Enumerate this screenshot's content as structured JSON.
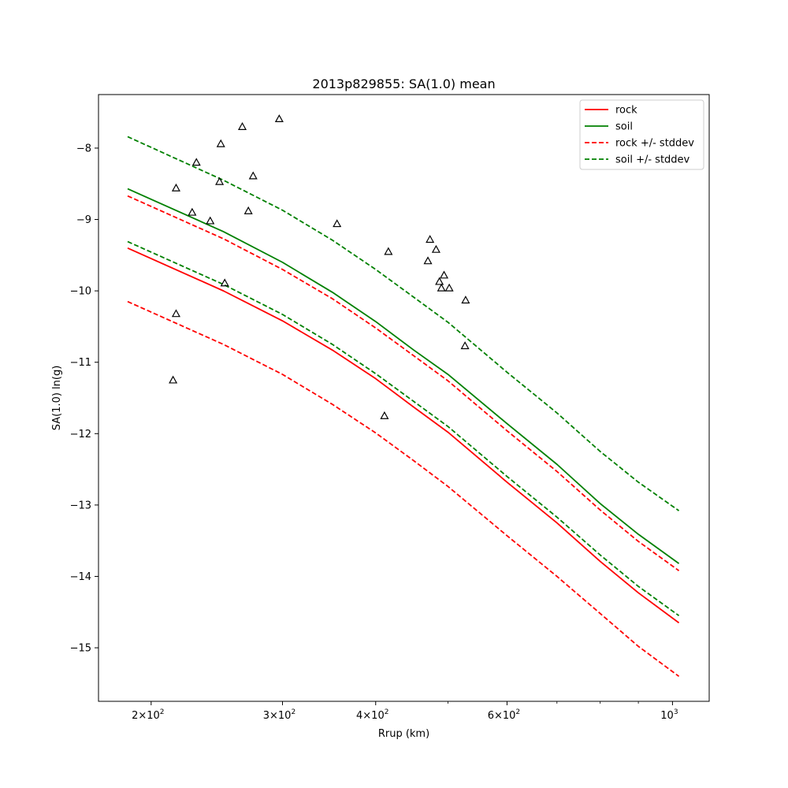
{
  "chart_data": {
    "type": "line",
    "title": "2013p829855: SA(1.0) mean",
    "xlabel": "Rrup (km)",
    "ylabel": "SA(1.0) ln(g)",
    "xscale": "log",
    "xlim": [
      170,
      1120
    ],
    "ylim": [
      -15.75,
      -7.25
    ],
    "grid": false,
    "legend_position": "top-right",
    "x_ticks": [
      {
        "value": 200,
        "base": "2",
        "exp": "2"
      },
      {
        "value": 300,
        "base": "3",
        "exp": "2"
      },
      {
        "value": 400,
        "base": "4",
        "exp": "2"
      },
      {
        "value": 600,
        "base": "6",
        "exp": "2"
      },
      {
        "value": 1000,
        "base": "10",
        "exp": "3"
      }
    ],
    "x_minor_ticks": [
      500,
      700,
      800,
      900
    ],
    "y_ticks": [
      {
        "value": -8,
        "label": "−8"
      },
      {
        "value": -9,
        "label": "−9"
      },
      {
        "value": -10,
        "label": "−10"
      },
      {
        "value": -11,
        "label": "−11"
      },
      {
        "value": -12,
        "label": "−12"
      },
      {
        "value": -13,
        "label": "−13"
      },
      {
        "value": -14,
        "label": "−14"
      },
      {
        "value": -15,
        "label": "−15"
      }
    ],
    "series": [
      {
        "name": "rock",
        "color": "#ff0000",
        "dash": "solid",
        "x": [
          186,
          250,
          300,
          350,
          400,
          450,
          500,
          600,
          700,
          800,
          900,
          1020
        ],
        "y": [
          -9.4,
          -10.0,
          -10.42,
          -10.83,
          -11.23,
          -11.63,
          -11.98,
          -12.68,
          -13.25,
          -13.79,
          -14.23,
          -14.65
        ]
      },
      {
        "name": "soil",
        "color": "#008000",
        "dash": "solid",
        "x": [
          186,
          250,
          300,
          350,
          400,
          450,
          500,
          600,
          700,
          800,
          900,
          1020
        ],
        "y": [
          -8.57,
          -9.17,
          -9.6,
          -10.02,
          -10.43,
          -10.83,
          -11.17,
          -11.86,
          -12.43,
          -12.98,
          -13.41,
          -13.82
        ]
      },
      {
        "name": "rock +/- stddev",
        "color": "#ff0000",
        "dash": "dashed",
        "x": [
          186,
          250,
          300,
          350,
          400,
          450,
          500,
          600,
          700,
          800,
          900,
          1020
        ],
        "y": [
          -8.67,
          -9.27,
          -9.7,
          -10.11,
          -10.52,
          -10.91,
          -11.26,
          -11.96,
          -12.53,
          -13.07,
          -13.51,
          -13.92
        ]
      },
      {
        "name": "",
        "color": "#ff0000",
        "dash": "dashed",
        "x": [
          186,
          250,
          300,
          350,
          400,
          450,
          500,
          600,
          700,
          800,
          900,
          1020
        ],
        "y": [
          -10.15,
          -10.75,
          -11.17,
          -11.59,
          -11.99,
          -12.38,
          -12.74,
          -13.43,
          -14.0,
          -14.52,
          -14.98,
          -15.4
        ]
      },
      {
        "name": "soil +/- stddev",
        "color": "#008000",
        "dash": "dashed",
        "x": [
          186,
          250,
          300,
          350,
          400,
          450,
          500,
          600,
          700,
          800,
          900,
          1020
        ],
        "y": [
          -7.84,
          -8.45,
          -8.87,
          -9.29,
          -9.7,
          -10.09,
          -10.44,
          -11.14,
          -11.71,
          -12.25,
          -12.68,
          -13.08
        ]
      },
      {
        "name": "",
        "color": "#008000",
        "dash": "dashed",
        "x": [
          186,
          250,
          300,
          350,
          400,
          450,
          500,
          600,
          700,
          800,
          900,
          1020
        ],
        "y": [
          -9.31,
          -9.91,
          -10.33,
          -10.75,
          -11.16,
          -11.55,
          -11.9,
          -12.6,
          -13.17,
          -13.7,
          -14.14,
          -14.55
        ]
      }
    ],
    "legend_entries": [
      {
        "label": "rock",
        "color": "#ff0000",
        "dash": "solid"
      },
      {
        "label": "soil",
        "color": "#008000",
        "dash": "solid"
      },
      {
        "label": "rock +/- stddev",
        "color": "#ff0000",
        "dash": "dashed"
      },
      {
        "label": "soil +/- stddev",
        "color": "#008000",
        "dash": "dashed"
      }
    ],
    "observations": {
      "marker": "triangle",
      "color": "#000000",
      "points": [
        {
          "x": 214,
          "y": -11.25
        },
        {
          "x": 216,
          "y": -10.32
        },
        {
          "x": 216,
          "y": -8.56
        },
        {
          "x": 227,
          "y": -8.9
        },
        {
          "x": 230,
          "y": -8.2
        },
        {
          "x": 240,
          "y": -9.02
        },
        {
          "x": 247,
          "y": -8.47
        },
        {
          "x": 248,
          "y": -7.94
        },
        {
          "x": 251,
          "y": -9.89
        },
        {
          "x": 265,
          "y": -7.7
        },
        {
          "x": 270,
          "y": -8.88
        },
        {
          "x": 274,
          "y": -8.39
        },
        {
          "x": 297,
          "y": -7.59
        },
        {
          "x": 355,
          "y": -9.06
        },
        {
          "x": 411,
          "y": -11.75
        },
        {
          "x": 416,
          "y": -9.45
        },
        {
          "x": 470,
          "y": -9.58
        },
        {
          "x": 473,
          "y": -9.28
        },
        {
          "x": 482,
          "y": -9.42
        },
        {
          "x": 487,
          "y": -9.87
        },
        {
          "x": 490,
          "y": -9.96
        },
        {
          "x": 494,
          "y": -9.78
        },
        {
          "x": 502,
          "y": -9.96
        },
        {
          "x": 528,
          "y": -10.13
        },
        {
          "x": 527,
          "y": -10.77
        }
      ]
    }
  }
}
